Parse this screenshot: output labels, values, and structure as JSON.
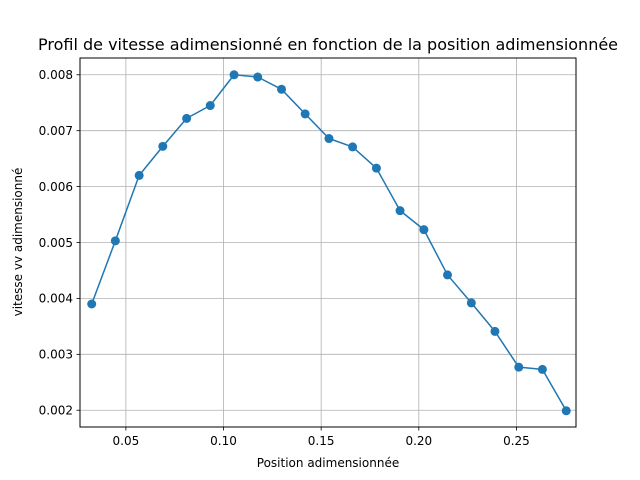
{
  "chart_data": {
    "type": "line",
    "title": "Profil de vitesse adimensionné en fonction de la position adimensionnée",
    "xlabel": "Position adimensionnée",
    "ylabel": "vitesse vv adimensionné",
    "xlim": [
      0.0265,
      0.2805
    ],
    "ylim": [
      0.0017,
      0.0083
    ],
    "xticks": [
      0.05,
      0.1,
      0.15,
      0.2,
      0.25
    ],
    "xtick_labels": [
      "0.05",
      "0.10",
      "0.15",
      "0.20",
      "0.25"
    ],
    "yticks": [
      0.002,
      0.003,
      0.004,
      0.005,
      0.006,
      0.007,
      0.008
    ],
    "ytick_labels": [
      "0.002",
      "0.003",
      "0.004",
      "0.005",
      "0.006",
      "0.007",
      "0.008"
    ],
    "grid": true,
    "marker": "circle",
    "color": "#1f77b4",
    "series": [
      {
        "x": [
          0.0325,
          0.0446,
          0.0568,
          0.0689,
          0.0811,
          0.0932,
          0.1054,
          0.1175,
          0.1297,
          0.1418,
          0.154,
          0.1661,
          0.1783,
          0.1904,
          0.2026,
          0.2147,
          0.2269,
          0.239,
          0.2512,
          0.2633,
          0.2755
        ],
        "y": [
          0.0039,
          0.00503,
          0.0062,
          0.00672,
          0.00722,
          0.00745,
          0.008,
          0.00796,
          0.00774,
          0.0073,
          0.00686,
          0.00671,
          0.00633,
          0.00557,
          0.00523,
          0.00442,
          0.00392,
          0.00341,
          0.00277,
          0.00273,
          0.00199
        ]
      }
    ]
  }
}
